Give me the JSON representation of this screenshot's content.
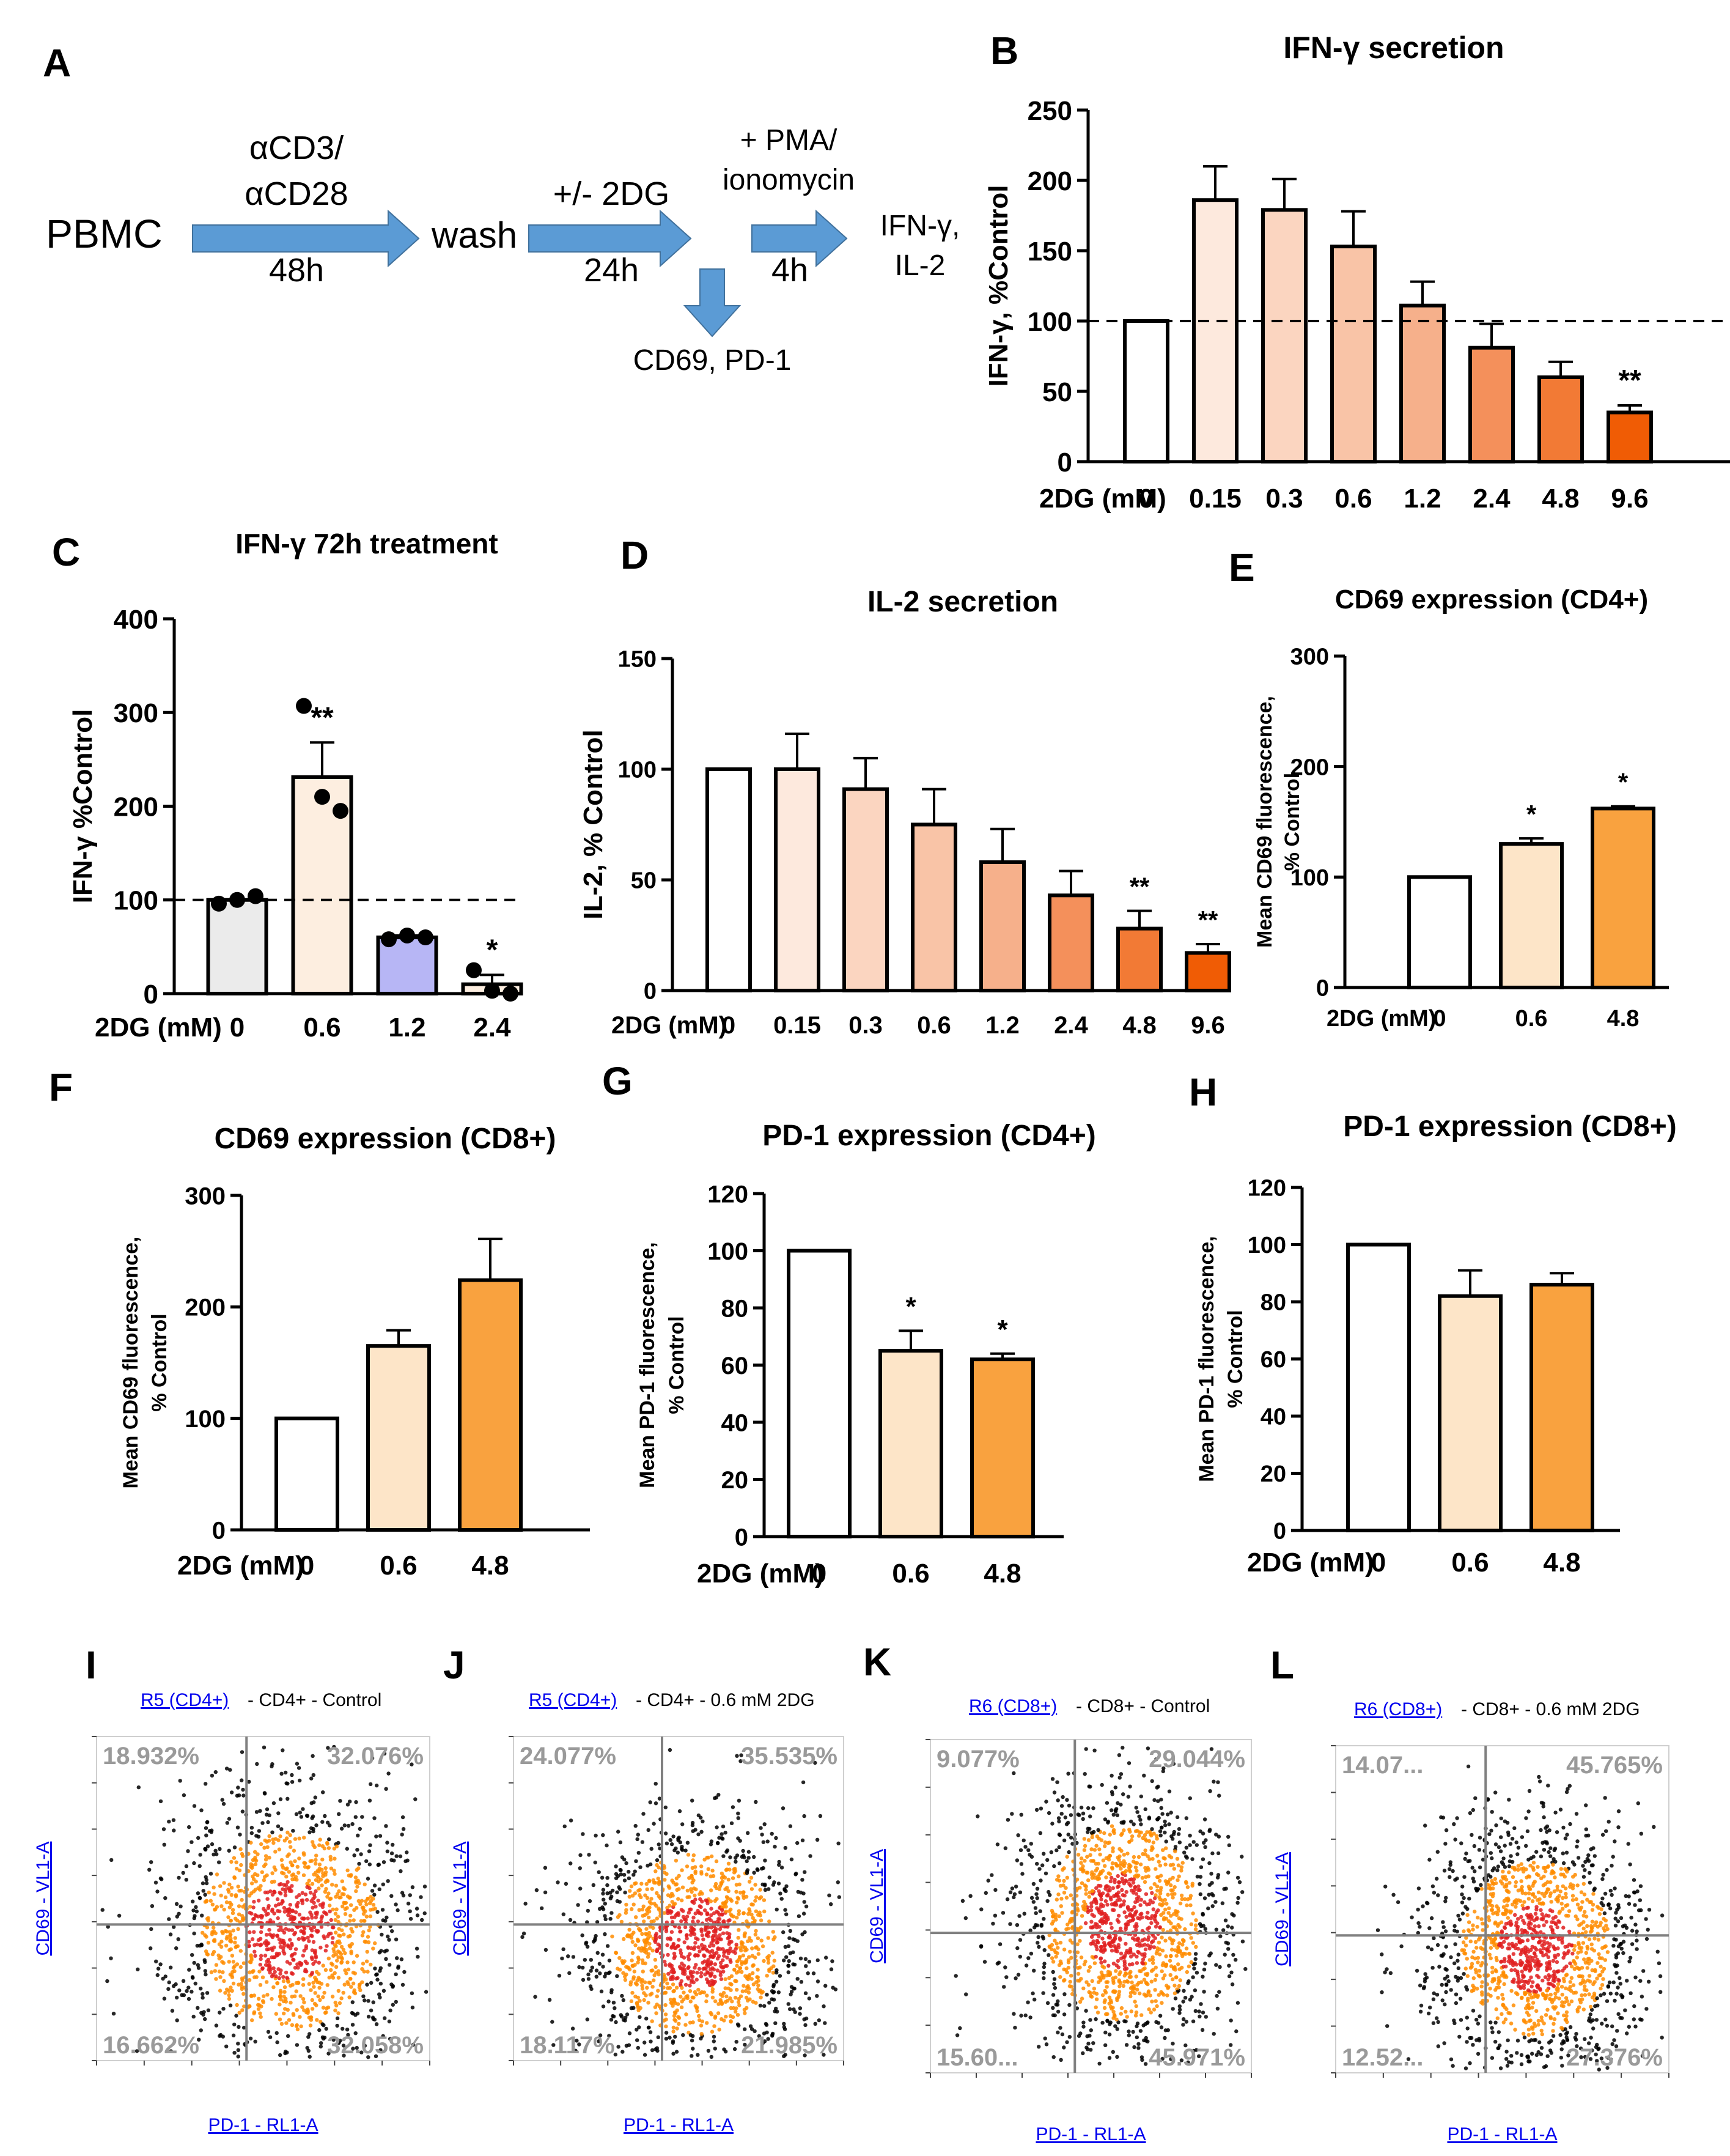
{
  "colors": {
    "arrow": "#5b9bd5",
    "axis": "#000000",
    "dot_low": "#000000",
    "dot_mid": "#ff8c00",
    "dot_high": "#e02020",
    "quadline": "#808080",
    "quadtext": "#9a9a9a",
    "link": "#0000ee",
    "ramp": [
      "#ffffff",
      "#fde9dd",
      "#fbd5c0",
      "#f9c4a7",
      "#f6b08b",
      "#f4905b",
      "#f27a35",
      "#f05c05"
    ]
  },
  "panel_a": {
    "label": "A",
    "pbmc": "PBMC",
    "step1_top1": "αCD3/",
    "step1_top2": "αCD28",
    "step1_bottom": "48h",
    "wash": "wash",
    "step2_top": "+/- 2DG",
    "step2_bottom": "24h",
    "step3_top1": "+ PMA/",
    "step3_top2": "ionomycin",
    "step3_bottom": "4h",
    "readout1": "IFN-γ,",
    "readout2": "IL-2",
    "branch": "CD69, PD-1"
  },
  "chart_data": [
    {
      "id": "B",
      "type": "bar",
      "title": "IFN-γ secretion",
      "ylabel": "IFN-γ, %Control",
      "xlabel": "2DG (mM)",
      "categories": [
        "0",
        "0.15",
        "0.3",
        "0.6",
        "1.2",
        "2.4",
        "4.8",
        "9.6"
      ],
      "values": [
        100,
        186,
        179,
        153,
        111,
        81,
        60,
        35
      ],
      "errors": [
        0,
        24,
        22,
        25,
        17,
        17,
        11,
        5
      ],
      "colors": [
        0,
        1,
        2,
        3,
        4,
        5,
        6,
        7
      ],
      "sig": [
        "",
        "",
        "",
        "",
        "",
        "",
        "",
        "**"
      ],
      "ylim": [
        0,
        250
      ],
      "yticks": [
        0,
        50,
        100,
        150,
        200,
        250
      ],
      "refline": 100
    },
    {
      "id": "C",
      "type": "bar",
      "title": "IFN-γ 72h treatment",
      "ylabel": "IFN-γ %Control",
      "xlabel": "2DG (mM)",
      "categories": [
        "0",
        "0.6",
        "1.2",
        "2.4"
      ],
      "values": [
        100,
        231,
        60,
        10
      ],
      "errors": [
        0,
        37,
        2,
        10
      ],
      "custom_colors": [
        "#ebebeb",
        "#fdeee0",
        "#b7b6f5",
        "#fdeee0"
      ],
      "points": [
        [
          96,
          100,
          104
        ],
        [
          307,
          210,
          195
        ],
        [
          58,
          62,
          60
        ],
        [
          25,
          3,
          0
        ]
      ],
      "sig": [
        "",
        "**",
        "",
        "*"
      ],
      "ylim": [
        0,
        400
      ],
      "yticks": [
        0,
        100,
        200,
        300,
        400
      ],
      "refline": 100
    },
    {
      "id": "D",
      "type": "bar",
      "title": "IL-2 secretion",
      "ylabel": "IL-2, % Control",
      "xlabel": "2DG (mM)",
      "categories": [
        "0",
        "0.15",
        "0.3",
        "0.6",
        "1.2",
        "2.4",
        "4.8",
        "9.6"
      ],
      "values": [
        100,
        100,
        91,
        75,
        58,
        43,
        28,
        17
      ],
      "errors": [
        0,
        16,
        14,
        16,
        15,
        11,
        8,
        4
      ],
      "colors": [
        0,
        1,
        2,
        3,
        4,
        5,
        6,
        7
      ],
      "sig": [
        "",
        "",
        "",
        "",
        "",
        "",
        "**",
        "**"
      ],
      "ylim": [
        0,
        150
      ],
      "yticks": [
        0,
        50,
        100,
        150
      ]
    },
    {
      "id": "E",
      "type": "bar",
      "title": "CD69 expression (CD4+)",
      "ylabel": "Mean CD69 fluorescence,",
      "ylabel2": "% Control",
      "xlabel": "2DG (mM)",
      "categories": [
        "0",
        "0.6",
        "4.8"
      ],
      "values": [
        100,
        130,
        162
      ],
      "errors": [
        0,
        5,
        2
      ],
      "custom_colors": [
        "#ffffff",
        "#fde5c8",
        "#f9a23f"
      ],
      "sig": [
        "",
        "*",
        "*"
      ],
      "ylim": [
        0,
        300
      ],
      "yticks": [
        0,
        100,
        200,
        300
      ]
    },
    {
      "id": "F",
      "type": "bar",
      "title": "CD69 expression (CD8+)",
      "ylabel": "Mean CD69 fluorescence,",
      "ylabel2": "% Control",
      "xlabel": "2DG (mM)",
      "categories": [
        "0",
        "0.6",
        "4.8"
      ],
      "values": [
        100,
        165,
        224
      ],
      "errors": [
        0,
        14,
        37
      ],
      "custom_colors": [
        "#ffffff",
        "#fde5c8",
        "#f9a23f"
      ],
      "sig": [
        "",
        "",
        ""
      ],
      "ylim": [
        0,
        300
      ],
      "yticks": [
        0,
        100,
        200,
        300
      ]
    },
    {
      "id": "G",
      "type": "bar",
      "title": "PD-1 expression (CD4+)",
      "ylabel": "Mean PD-1 fluorescence,",
      "ylabel2": "% Control",
      "xlabel": "2DG (mM)",
      "categories": [
        "0",
        "0.6",
        "4.8"
      ],
      "values": [
        100,
        65,
        62
      ],
      "errors": [
        0,
        7,
        2
      ],
      "custom_colors": [
        "#ffffff",
        "#fde5c8",
        "#f9a23f"
      ],
      "sig": [
        "",
        "*",
        "*"
      ],
      "ylim": [
        0,
        120
      ],
      "yticks": [
        0,
        20,
        40,
        60,
        80,
        100,
        120
      ]
    },
    {
      "id": "H",
      "type": "bar",
      "title": "PD-1 expression (CD8+)",
      "ylabel": "Mean PD-1 fluorescence,",
      "ylabel2": "% Control",
      "xlabel": "2DG (mM)",
      "categories": [
        "0",
        "0.6",
        "4.8"
      ],
      "values": [
        100,
        82,
        86
      ],
      "errors": [
        0,
        9,
        4
      ],
      "custom_colors": [
        "#ffffff",
        "#fde5c8",
        "#f9a23f"
      ],
      "sig": [
        "",
        "",
        ""
      ],
      "ylim": [
        0,
        120
      ],
      "yticks": [
        0,
        20,
        40,
        60,
        80,
        100,
        120
      ]
    },
    {
      "id": "I",
      "type": "scatter",
      "subtype": "flow-cytometry-density",
      "gate": "R5 (CD4+)",
      "title": " - CD4+ - Control",
      "xlabel": "PD-1 - RL1-A",
      "ylabel": "CD69 - VL1-A",
      "q_ul": "18.932%",
      "q_ur": "32.076%",
      "q_ll": "16.662%",
      "q_lr": "32.058%",
      "center": [
        0.58,
        0.4
      ],
      "spread": [
        0.19,
        0.22
      ],
      "seed": 11
    },
    {
      "id": "J",
      "type": "scatter",
      "subtype": "flow-cytometry-density",
      "gate": "R5 (CD4+)",
      "title": " - CD4+ - 0.6 mM 2DG",
      "xlabel": "PD-1 - RL1-A",
      "ylabel": "CD69 - VL1-A",
      "q_ul": "24.077%",
      "q_ur": "35.535%",
      "q_ll": "18.117%",
      "q_lr": "21.985%",
      "center": [
        0.55,
        0.36
      ],
      "spread": [
        0.18,
        0.2
      ],
      "seed": 23
    },
    {
      "id": "K",
      "type": "scatter",
      "subtype": "flow-cytometry-density",
      "gate": "R6 (CD8+)",
      "title": " - CD8+ - Control",
      "xlabel": "PD-1 - RL1-A",
      "ylabel": "CD69 - VL1-A",
      "q_ul": "9.077%",
      "q_ur": "29.044%",
      "q_ll": "15.60...",
      "q_lr": "45.971%",
      "center": [
        0.6,
        0.45
      ],
      "spread": [
        0.17,
        0.21
      ],
      "seed": 37
    },
    {
      "id": "L",
      "type": "scatter",
      "subtype": "flow-cytometry-density",
      "gate": "R6 (CD8+)",
      "title": " - CD8+ - 0.6 mM 2DG",
      "xlabel": "PD-1 - RL1-A",
      "ylabel": "CD69 - VL1-A",
      "q_ul": "14.07...",
      "q_ur": "45.765%",
      "q_ll": "12.52...",
      "q_lr": "27.376%",
      "center": [
        0.6,
        0.38
      ],
      "spread": [
        0.16,
        0.19
      ],
      "seed": 51
    }
  ]
}
